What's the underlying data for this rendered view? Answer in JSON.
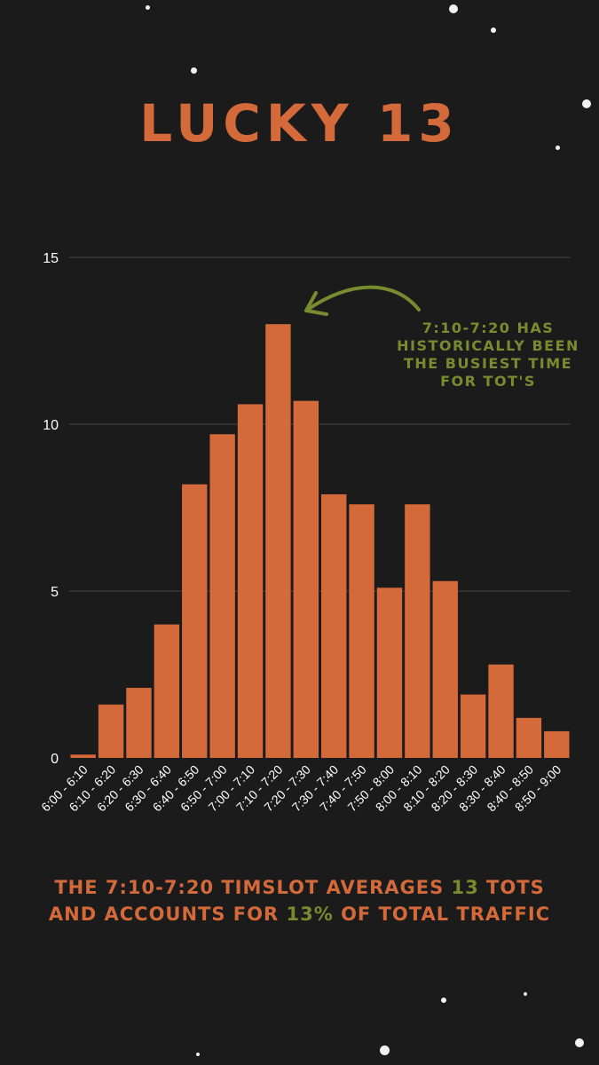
{
  "title": "LUCKY 13",
  "annotation": "7:10-7:20 HAS HISTORICALLY BEEN THE BUSIEST TIME FOR TOT'S",
  "caption": {
    "line1_a": "THE 7:10-7:20 TIMSLOT AVERAGES ",
    "line1_hl": "13",
    "line1_b": " TOTS",
    "line2_a": "AND ACCOUNTS FOR ",
    "line2_hl": "13%",
    "line2_b": " OF TOTAL TRAFFIC"
  },
  "colors": {
    "background": "#1c1b1c",
    "bar": "#d4693a",
    "accent_green": "#7a8a2e",
    "text": "#ffffff",
    "grid": "#444444"
  },
  "chart_data": {
    "type": "bar",
    "categories": [
      "6:00 - 6:10",
      "6:10 - 6:20",
      "6:20 - 6:30",
      "6:30 - 6:40",
      "6:40 - 6:50",
      "6:50 - 7:00",
      "7:00 - 7:10",
      "7:10 - 7:20",
      "7:20 - 7:30",
      "7:30 - 7:40",
      "7:40 - 7:50",
      "7:50 - 8:00",
      "8:00 - 8:10",
      "8:10 - 8:20",
      "8:20 - 8:30",
      "8:30 - 8:40",
      "8:40 - 8:50",
      "8:50 - 9:00"
    ],
    "values": [
      0.1,
      1.6,
      2.1,
      4.0,
      8.2,
      9.7,
      10.6,
      13.0,
      10.7,
      7.9,
      7.6,
      5.1,
      7.6,
      5.3,
      1.9,
      2.8,
      1.2,
      0.8
    ],
    "yticks": [
      0,
      5,
      10,
      15
    ],
    "ylim": [
      0,
      15
    ],
    "grid": true,
    "legend": "none"
  }
}
